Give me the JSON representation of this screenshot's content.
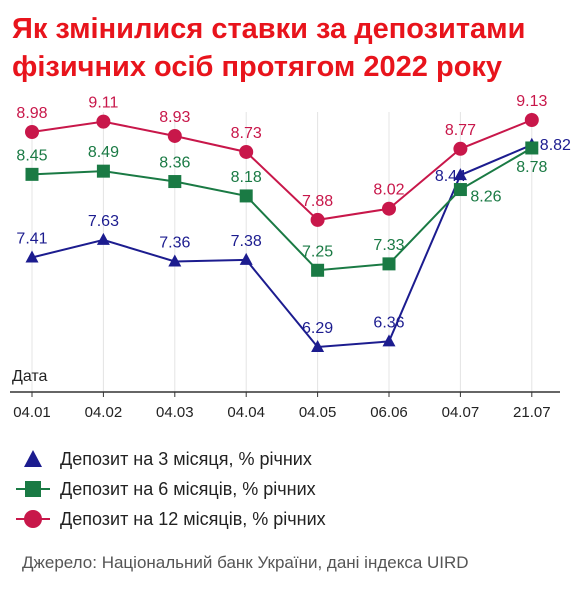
{
  "title_lines": [
    "Як змінилися ставки за депозитами",
    "фізичних осіб протягом 2022 року"
  ],
  "source": "Джерело: Національний банк України, дані індекса UIRD",
  "colors": {
    "title": "#e8141c",
    "s3": "#1c1c8f",
    "s6": "#1a7a44",
    "s12": "#c8174a"
  },
  "chart_data": {
    "type": "line",
    "title": "Як змінилися ставки за депозитами фізичних осіб протягом 2022 року",
    "xlabel": "Дата",
    "ylabel": "",
    "categories": [
      "04.01",
      "04.02",
      "04.03",
      "04.04",
      "04.05",
      "06.06",
      "04.07",
      "21.07"
    ],
    "ylim": [
      6.0,
      9.4
    ],
    "grid": "vertical",
    "legend_position": "bottom",
    "series": [
      {
        "name": "Депозит на 3 місяця, % річних",
        "marker": "triangle",
        "values": [
          7.41,
          7.63,
          7.36,
          7.38,
          6.29,
          6.36,
          8.44,
          8.82
        ],
        "labels": [
          "7.41",
          "7.63",
          "7.36",
          "7.38",
          "6.29",
          "6.36",
          "8.44",
          "8.82"
        ]
      },
      {
        "name": "Депозит на 6 місяців, % річних",
        "marker": "square",
        "values": [
          8.45,
          8.49,
          8.36,
          8.18,
          7.25,
          7.33,
          8.26,
          8.78
        ],
        "labels": [
          "8.45",
          "8.49",
          "8.36",
          "8.18",
          "7.25",
          "7.33",
          "8.26",
          "8.78"
        ]
      },
      {
        "name": "Депозит на 12 місяців, % річних",
        "marker": "circle",
        "values": [
          8.98,
          9.11,
          8.93,
          8.73,
          7.88,
          8.02,
          8.77,
          9.13
        ],
        "labels": [
          "8.98",
          "9.11",
          "8.93",
          "8.73",
          "7.88",
          "8.02",
          "8.77",
          "9.13"
        ]
      }
    ]
  }
}
